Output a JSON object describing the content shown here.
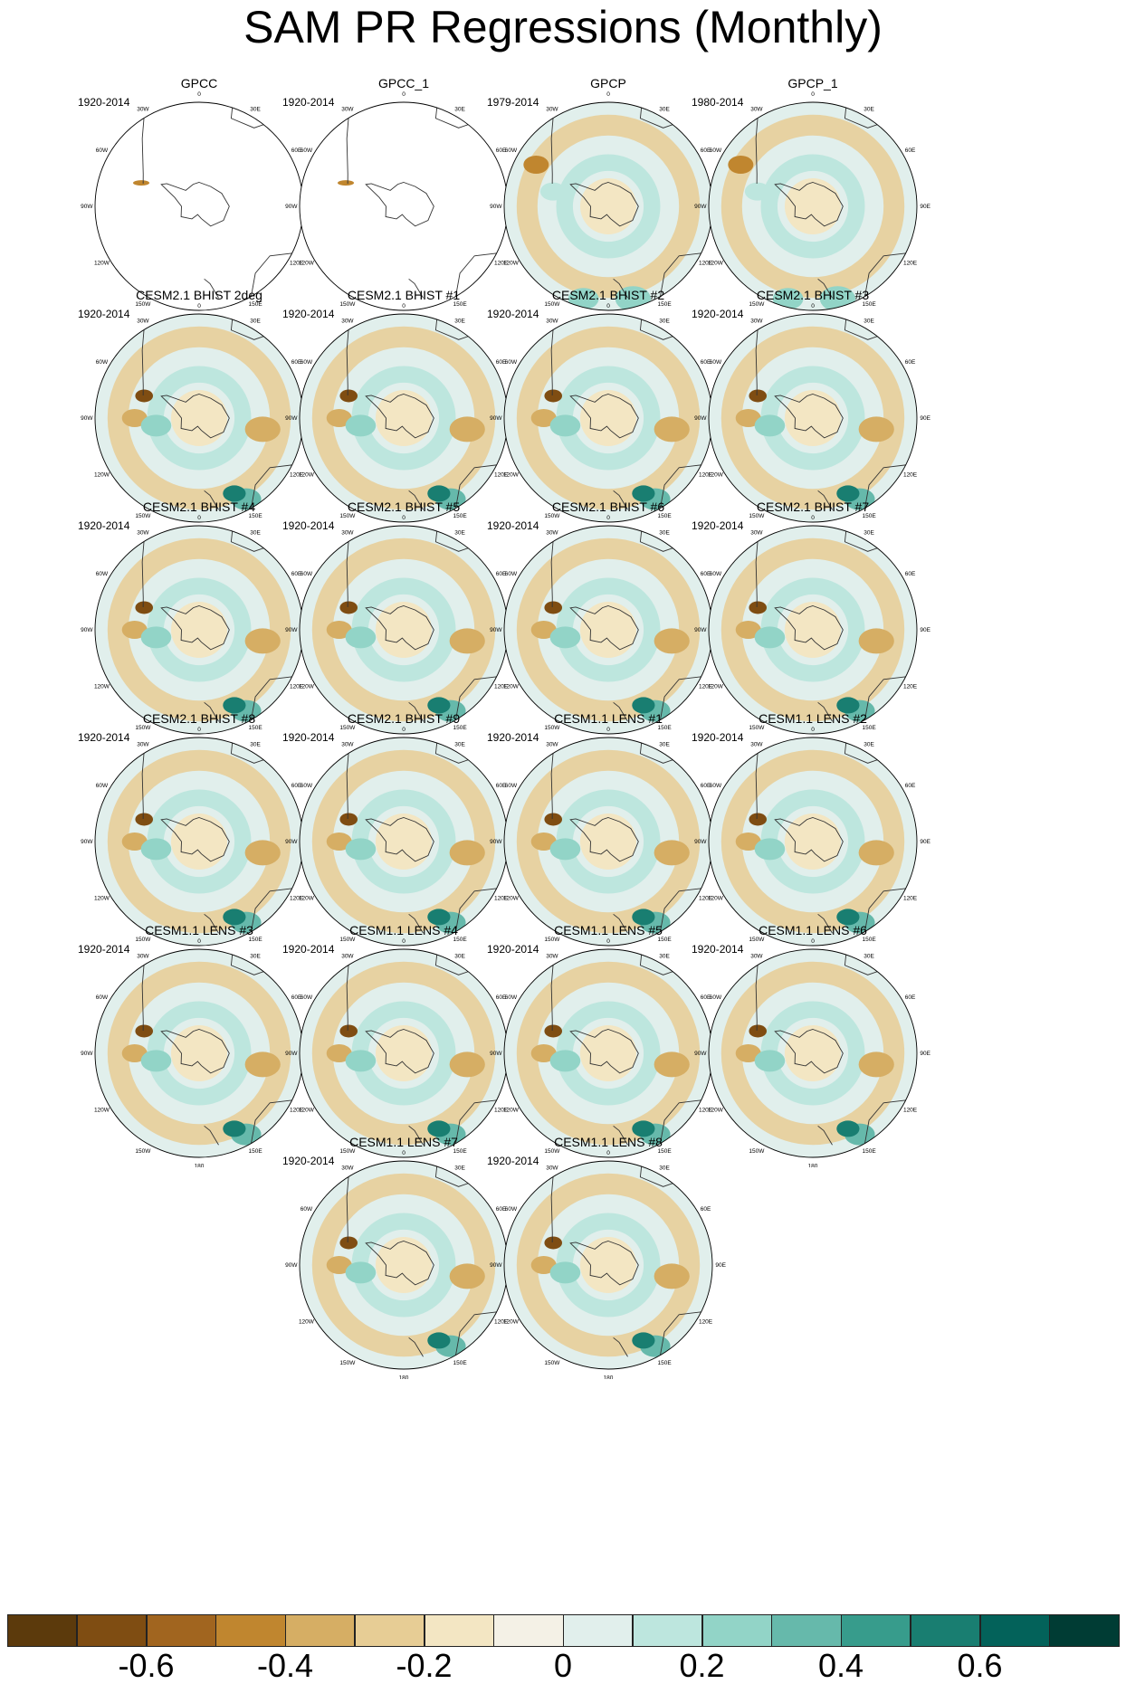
{
  "title": "SAM PR Regressions (Monthly)",
  "longitude_labels": [
    "0",
    "30E",
    "60E",
    "90E",
    "120E",
    "150E",
    "180",
    "150W",
    "120W",
    "90W",
    "60W",
    "30W"
  ],
  "colorbar": {
    "colors": [
      "#5c3a0c",
      "#7f4d12",
      "#a1651f",
      "#c0862f",
      "#d6ae64",
      "#e7cd95",
      "#f3e6c3",
      "#f4f1e6",
      "#e1efec",
      "#bde6de",
      "#92d4c7",
      "#66b9ab",
      "#379c8c",
      "#197e71",
      "#03625a",
      "#003c34"
    ],
    "tick_labels": [
      "-0.6",
      "-0.4",
      "-0.2",
      "0",
      "0.2",
      "0.4",
      "0.6"
    ]
  },
  "panels": [
    {
      "title": "GPCC",
      "years": "1920-2014",
      "pattern": "obs_gpcc"
    },
    {
      "title": "GPCC_1",
      "years": "1920-2014",
      "pattern": "obs_gpcc"
    },
    {
      "title": "GPCP",
      "years": "1979-2014",
      "pattern": "obs_gpcp"
    },
    {
      "title": "GPCP_1",
      "years": "1980-2014",
      "pattern": "obs_gpcp"
    },
    {
      "title": "CESM2.1 BHIST 2deg",
      "years": "1920-2014",
      "pattern": "model"
    },
    {
      "title": "CESM2.1 BHIST #1",
      "years": "1920-2014",
      "pattern": "model"
    },
    {
      "title": "CESM2.1 BHIST #2",
      "years": "1920-2014",
      "pattern": "model"
    },
    {
      "title": "CESM2.1 BHIST #3",
      "years": "1920-2014",
      "pattern": "model"
    },
    {
      "title": "CESM2.1 BHIST #4",
      "years": "1920-2014",
      "pattern": "model"
    },
    {
      "title": "CESM2.1 BHIST #5",
      "years": "1920-2014",
      "pattern": "model"
    },
    {
      "title": "CESM2.1 BHIST #6",
      "years": "1920-2014",
      "pattern": "model"
    },
    {
      "title": "CESM2.1 BHIST #7",
      "years": "1920-2014",
      "pattern": "model"
    },
    {
      "title": "CESM2.1 BHIST #8",
      "years": "1920-2014",
      "pattern": "model"
    },
    {
      "title": "CESM2.1 BHIST #9",
      "years": "1920-2014",
      "pattern": "model"
    },
    {
      "title": "CESM1.1 LENS #1",
      "years": "1920-2014",
      "pattern": "model"
    },
    {
      "title": "CESM1.1 LENS #2",
      "years": "1920-2014",
      "pattern": "model"
    },
    {
      "title": "CESM1.1 LENS #3",
      "years": "1920-2014",
      "pattern": "model"
    },
    {
      "title": "CESM1.1 LENS #4",
      "years": "1920-2014",
      "pattern": "model"
    },
    {
      "title": "CESM1.1 LENS #5",
      "years": "1920-2014",
      "pattern": "model"
    },
    {
      "title": "CESM1.1 LENS #6",
      "years": "1920-2014",
      "pattern": "model"
    },
    {
      "title": "CESM1.1 LENS #7",
      "years": "1920-2014",
      "pattern": "model"
    },
    {
      "title": "CESM1.1 LENS #8",
      "years": "1920-2014",
      "pattern": "model"
    }
  ]
}
